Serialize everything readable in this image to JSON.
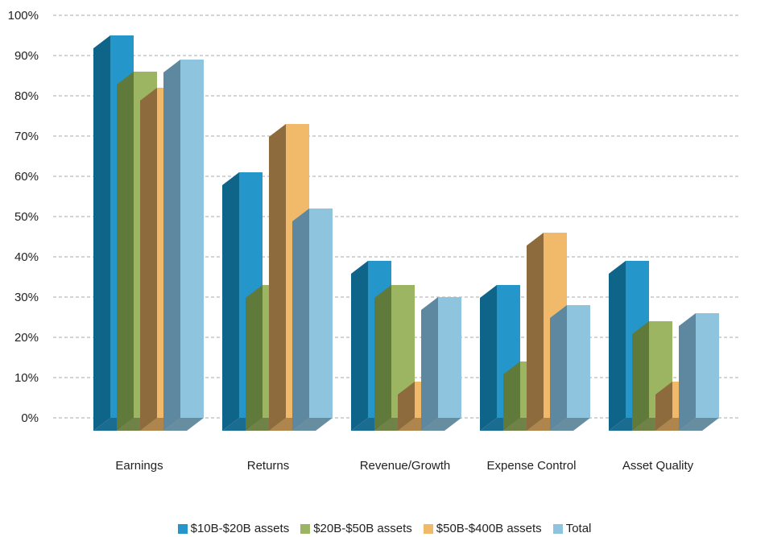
{
  "chart_data": {
    "type": "bar",
    "categories": [
      "Earnings",
      "Returns",
      "Revenue/Growth",
      "Expense Control",
      "Asset Quality"
    ],
    "series": [
      {
        "name": "$10B-$20B assets",
        "color": "#2596c9",
        "values": [
          95,
          61,
          39,
          33,
          39
        ]
      },
      {
        "name": "$20B-$50B assets",
        "color": "#9bb563",
        "values": [
          86,
          33,
          33,
          14,
          24
        ]
      },
      {
        "name": "$50B-$400B assets",
        "color": "#f1b96a",
        "values": [
          82,
          73,
          9,
          46,
          9
        ]
      },
      {
        "name": "Total",
        "color": "#8fc4de",
        "values": [
          89,
          52,
          30,
          28,
          26
        ]
      }
    ],
    "yticks": [
      "0%",
      "10%",
      "20%",
      "30%",
      "40%",
      "50%",
      "60%",
      "70%",
      "80%",
      "90%",
      "100%"
    ],
    "ylim": [
      0,
      100
    ],
    "grid": true,
    "legend_position": "bottom"
  }
}
